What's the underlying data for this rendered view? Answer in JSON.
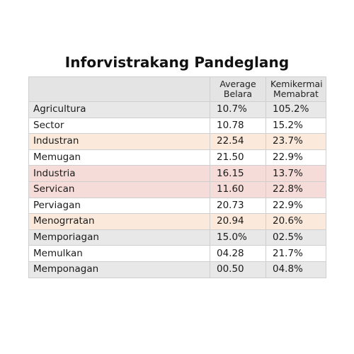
{
  "chart_data": {
    "type": "table",
    "title": "Inforvistrakang Pandeglang",
    "columns": [
      {
        "line1": "",
        "line2": ""
      },
      {
        "line1": "Average",
        "line2": "Belara"
      },
      {
        "line1": "Kemikermai",
        "line2": "Memabrat"
      }
    ],
    "rows": [
      {
        "label": "Agricultura",
        "v1": "10.7%",
        "v2": "105.2%",
        "shade": "gray"
      },
      {
        "label": "Sector",
        "v1": "10.78",
        "v2": "15.2%",
        "shade": "white"
      },
      {
        "label": "Industran",
        "v1": "22.54",
        "v2": "23.7%",
        "shade": "peach"
      },
      {
        "label": "Memugan",
        "v1": "21.50",
        "v2": "22.9%",
        "shade": "white"
      },
      {
        "label": "Industria",
        "v1": "16.15",
        "v2": "13.7%",
        "shade": "pink"
      },
      {
        "label": "Servican",
        "v1": "11.60",
        "v2": "22.8%",
        "shade": "pink"
      },
      {
        "label": "Perviagan",
        "v1": "20.73",
        "v2": "22.9%",
        "shade": "white"
      },
      {
        "label": "Menogrratan",
        "v1": "20.94",
        "v2": "20.6%",
        "shade": "peach"
      },
      {
        "label": "Memporiagan",
        "v1": "15.0%",
        "v2": "02.5%",
        "shade": "gray"
      },
      {
        "label": "Memulkan",
        "v1": "04.28",
        "v2": "21.7%",
        "shade": "white"
      },
      {
        "label": "Memponagan",
        "v1": "00.50",
        "v2": "04.8%",
        "shade": "gray"
      }
    ],
    "colors": {
      "gray": "#e8e8e8",
      "white": "#ffffff",
      "peach": "#fbeadb",
      "pink": "#f6dcd8",
      "header": "#e4e4e4"
    }
  }
}
